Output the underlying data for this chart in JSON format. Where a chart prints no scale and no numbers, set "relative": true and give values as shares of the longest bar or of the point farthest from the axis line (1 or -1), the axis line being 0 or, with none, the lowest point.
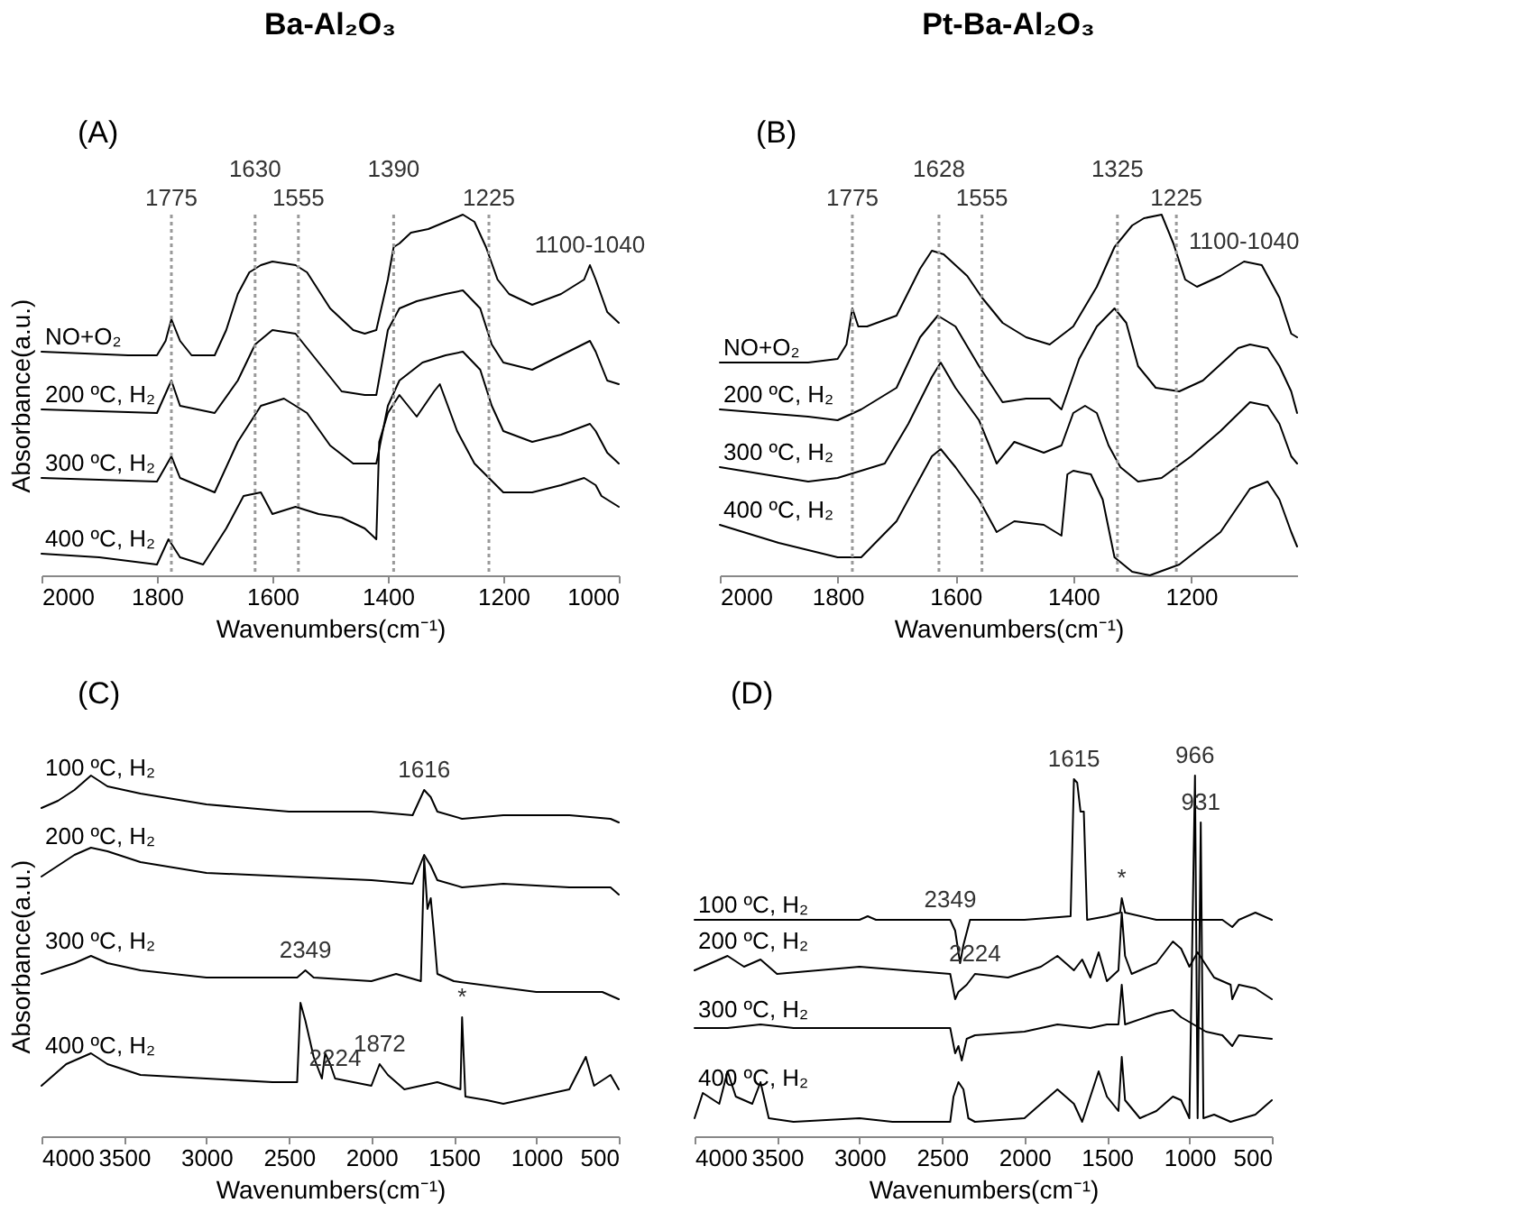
{
  "chart_data": [
    {
      "type": "line",
      "title": "Ba-Al₂O₃",
      "xlabel": "Wavenumbers(cm⁻¹)",
      "ylabel": "Absorbance(a.u.)",
      "relative": true,
      "grid": false,
      "legend": false,
      "xlim": [
        2000,
        1000
      ],
      "xticks": [
        2000,
        1800,
        1600,
        1400,
        1200,
        1000
      ],
      "x": [
        2000,
        1850,
        1800,
        1785,
        1775,
        1760,
        1740,
        1700,
        1680,
        1660,
        1640,
        1620,
        1600,
        1560,
        1540,
        1520,
        1500,
        1460,
        1440,
        1420,
        1400,
        1390,
        1380,
        1360,
        1330,
        1300,
        1270,
        1250,
        1230,
        1210,
        1190,
        1150,
        1100,
        1060,
        1050,
        1040,
        1020,
        1000
      ],
      "series": [
        {
          "name": "NO+O₂",
          "color": "#000000",
          "values": [
            0.62,
            0.61,
            0.61,
            0.65,
            0.71,
            0.65,
            0.61,
            0.61,
            0.68,
            0.78,
            0.84,
            0.86,
            0.87,
            0.86,
            0.84,
            0.79,
            0.74,
            0.68,
            0.67,
            0.68,
            0.82,
            0.91,
            0.92,
            0.95,
            0.96,
            0.98,
            1.0,
            0.98,
            0.91,
            0.82,
            0.78,
            0.75,
            0.78,
            0.82,
            0.86,
            0.82,
            0.73,
            0.7
          ]
        },
        {
          "name": "200 ºC, H₂",
          "color": "#000000",
          "x": [
            2000,
            1800,
            1775,
            1760,
            1700,
            1660,
            1630,
            1600,
            1560,
            1520,
            1480,
            1440,
            1420,
            1400,
            1380,
            1350,
            1300,
            1270,
            1240,
            1220,
            1200,
            1150,
            1100,
            1050,
            1040,
            1020,
            1000
          ],
          "values": [
            0.46,
            0.45,
            0.54,
            0.47,
            0.45,
            0.54,
            0.64,
            0.68,
            0.67,
            0.59,
            0.51,
            0.5,
            0.5,
            0.68,
            0.74,
            0.76,
            0.78,
            0.79,
            0.74,
            0.64,
            0.59,
            0.57,
            0.61,
            0.65,
            0.62,
            0.54,
            0.53
          ]
        },
        {
          "name": "300 ºC, H₂",
          "color": "#000000",
          "x": [
            2000,
            1800,
            1775,
            1760,
            1700,
            1660,
            1620,
            1580,
            1540,
            1500,
            1460,
            1420,
            1400,
            1380,
            1340,
            1300,
            1270,
            1240,
            1220,
            1200,
            1150,
            1100,
            1050,
            1040,
            1020,
            1000
          ],
          "values": [
            0.27,
            0.26,
            0.33,
            0.27,
            0.23,
            0.37,
            0.47,
            0.49,
            0.45,
            0.36,
            0.31,
            0.31,
            0.47,
            0.54,
            0.59,
            0.61,
            0.62,
            0.57,
            0.47,
            0.4,
            0.37,
            0.39,
            0.42,
            0.4,
            0.34,
            0.31
          ]
        },
        {
          "name": "400 ºC, H₂",
          "color": "#000000",
          "x": [
            2000,
            1900,
            1800,
            1780,
            1760,
            1720,
            1680,
            1650,
            1620,
            1600,
            1560,
            1520,
            1480,
            1440,
            1420,
            1415,
            1400,
            1380,
            1350,
            1320,
            1310,
            1280,
            1250,
            1200,
            1150,
            1100,
            1060,
            1040,
            1030,
            1000
          ],
          "values": [
            0.06,
            0.05,
            0.03,
            0.1,
            0.05,
            0.03,
            0.13,
            0.22,
            0.23,
            0.17,
            0.19,
            0.17,
            0.16,
            0.13,
            0.1,
            0.37,
            0.45,
            0.5,
            0.44,
            0.51,
            0.53,
            0.4,
            0.31,
            0.23,
            0.23,
            0.25,
            0.27,
            0.25,
            0.22,
            0.19
          ]
        }
      ],
      "ref_lines": [
        {
          "axis": "x",
          "value": 1775,
          "label": "1775",
          "color": "#999999",
          "line_style": "dotted"
        },
        {
          "axis": "x",
          "value": 1630,
          "label": "1630",
          "color": "#999999",
          "line_style": "dotted"
        },
        {
          "axis": "x",
          "value": 1555,
          "label": "1555",
          "color": "#999999",
          "line_style": "dotted"
        },
        {
          "axis": "x",
          "value": 1390,
          "label": "1390",
          "color": "#999999",
          "line_style": "dotted"
        },
        {
          "axis": "x",
          "value": 1225,
          "label": "1225",
          "color": "#999999",
          "line_style": "dotted"
        }
      ],
      "annotations": [
        "(A)",
        {
          "text": "1100-1040",
          "x": 1050,
          "y": 0.86
        }
      ]
    },
    {
      "type": "line",
      "title": "Pt-Ba-Al₂O₃",
      "xlabel": "Wavenumbers(cm⁻¹)",
      "relative": true,
      "grid": false,
      "legend": false,
      "xlim": [
        2000,
        1020
      ],
      "xticks": [
        2000,
        1800,
        1600,
        1400,
        1200
      ],
      "series": [
        {
          "name": "NO+O₂",
          "color": "#000000",
          "x": [
            2000,
            1850,
            1800,
            1785,
            1775,
            1765,
            1750,
            1700,
            1660,
            1640,
            1620,
            1580,
            1555,
            1520,
            1480,
            1440,
            1400,
            1360,
            1330,
            1300,
            1280,
            1250,
            1230,
            1210,
            1190,
            1150,
            1110,
            1080,
            1050,
            1030,
            1020
          ],
          "values": [
            0.59,
            0.59,
            0.6,
            0.64,
            0.74,
            0.69,
            0.69,
            0.72,
            0.85,
            0.9,
            0.89,
            0.83,
            0.77,
            0.7,
            0.66,
            0.64,
            0.69,
            0.8,
            0.91,
            0.97,
            0.99,
            1.0,
            0.92,
            0.82,
            0.8,
            0.83,
            0.87,
            0.86,
            0.77,
            0.67,
            0.66
          ]
        },
        {
          "name": "200 ºC, H₂",
          "color": "#000000",
          "x": [
            2000,
            1850,
            1800,
            1760,
            1700,
            1660,
            1630,
            1600,
            1560,
            1520,
            1480,
            1440,
            1420,
            1390,
            1360,
            1330,
            1310,
            1290,
            1260,
            1220,
            1180,
            1120,
            1100,
            1070,
            1050,
            1030,
            1020
          ],
          "values": [
            0.46,
            0.44,
            0.43,
            0.46,
            0.52,
            0.66,
            0.72,
            0.69,
            0.58,
            0.48,
            0.49,
            0.49,
            0.46,
            0.6,
            0.69,
            0.74,
            0.7,
            0.58,
            0.52,
            0.51,
            0.54,
            0.63,
            0.64,
            0.63,
            0.58,
            0.51,
            0.45
          ]
        },
        {
          "name": "300 ºC, H₂",
          "color": "#000000",
          "x": [
            2000,
            1850,
            1800,
            1720,
            1680,
            1640,
            1625,
            1600,
            1560,
            1530,
            1500,
            1450,
            1420,
            1400,
            1380,
            1360,
            1340,
            1320,
            1290,
            1250,
            1200,
            1150,
            1100,
            1070,
            1050,
            1030,
            1020
          ],
          "values": [
            0.3,
            0.26,
            0.27,
            0.31,
            0.42,
            0.55,
            0.59,
            0.52,
            0.43,
            0.31,
            0.37,
            0.34,
            0.36,
            0.45,
            0.47,
            0.45,
            0.36,
            0.3,
            0.26,
            0.27,
            0.33,
            0.4,
            0.48,
            0.47,
            0.42,
            0.33,
            0.31
          ]
        },
        {
          "name": "400 ºC, H₂",
          "color": "#000000",
          "x": [
            2000,
            1900,
            1800,
            1760,
            1700,
            1660,
            1640,
            1625,
            1600,
            1560,
            1530,
            1500,
            1450,
            1420,
            1410,
            1400,
            1370,
            1350,
            1330,
            1300,
            1270,
            1220,
            1150,
            1100,
            1070,
            1050,
            1030,
            1020
          ],
          "values": [
            0.14,
            0.09,
            0.05,
            0.05,
            0.15,
            0.27,
            0.33,
            0.35,
            0.3,
            0.21,
            0.12,
            0.15,
            0.14,
            0.11,
            0.28,
            0.29,
            0.28,
            0.21,
            0.05,
            0.01,
            0.0,
            0.03,
            0.12,
            0.24,
            0.26,
            0.21,
            0.12,
            0.08
          ]
        }
      ],
      "ref_lines": [
        {
          "axis": "x",
          "value": 1775,
          "label": "1775",
          "color": "#999999",
          "line_style": "dotted"
        },
        {
          "axis": "x",
          "value": 1628,
          "label": "1628",
          "color": "#999999",
          "line_style": "dotted"
        },
        {
          "axis": "x",
          "value": 1555,
          "label": "1555",
          "color": "#999999",
          "line_style": "dotted"
        },
        {
          "axis": "x",
          "value": 1325,
          "label": "1325",
          "color": "#999999",
          "line_style": "dotted"
        },
        {
          "axis": "x",
          "value": 1225,
          "label": "1225",
          "color": "#999999",
          "line_style": "dotted"
        }
      ],
      "annotations": [
        "(B)",
        {
          "text": "1100-1040",
          "x": 1110,
          "y": 0.87
        }
      ]
    },
    {
      "type": "line",
      "xlabel": "Wavenumbers(cm⁻¹)",
      "ylabel": "Absorbance(a.u.)",
      "relative": true,
      "grid": false,
      "legend": false,
      "xlim": [
        4000,
        500
      ],
      "xticks": [
        4000,
        3500,
        3000,
        2500,
        2000,
        1500,
        1000,
        500
      ],
      "series": [
        {
          "name": "100 ºC, H₂",
          "color": "#000000",
          "x": [
            4000,
            3900,
            3800,
            3700,
            3600,
            3400,
            3000,
            2500,
            2000,
            1750,
            1680,
            1640,
            1600,
            1450,
            1200,
            800,
            550,
            500
          ],
          "values": [
            0.91,
            0.93,
            0.96,
            1.0,
            0.97,
            0.95,
            0.92,
            0.9,
            0.9,
            0.89,
            0.96,
            0.94,
            0.9,
            0.88,
            0.89,
            0.89,
            0.88,
            0.87
          ]
        },
        {
          "name": "200 ºC, H₂",
          "color": "#000000",
          "x": [
            4000,
            3800,
            3700,
            3600,
            3400,
            3000,
            2500,
            2000,
            1750,
            1680,
            1640,
            1600,
            1450,
            1200,
            800,
            550,
            500
          ],
          "values": [
            0.72,
            0.78,
            0.8,
            0.79,
            0.76,
            0.73,
            0.72,
            0.71,
            0.7,
            0.78,
            0.75,
            0.71,
            0.69,
            0.7,
            0.69,
            0.69,
            0.67
          ]
        },
        {
          "name": "300 ºC, H₂",
          "color": "#000000",
          "x": [
            4000,
            3800,
            3700,
            3600,
            3400,
            3000,
            2450,
            2400,
            2350,
            2000,
            1850,
            1700,
            1680,
            1660,
            1640,
            1620,
            1600,
            1500,
            1000,
            600,
            500
          ],
          "values": [
            0.45,
            0.48,
            0.5,
            0.48,
            0.46,
            0.44,
            0.44,
            0.46,
            0.44,
            0.43,
            0.45,
            0.43,
            0.77,
            0.63,
            0.66,
            0.56,
            0.45,
            0.43,
            0.4,
            0.4,
            0.38
          ]
        },
        {
          "name": "400 ºC, H₂",
          "color": "#000000",
          "x": [
            4000,
            3850,
            3700,
            3600,
            3400,
            3000,
            2600,
            2450,
            2430,
            2400,
            2350,
            2300,
            2280,
            2250,
            2220,
            2000,
            1950,
            1900,
            1800,
            1600,
            1460,
            1450,
            1430,
            1300,
            1200,
            1000,
            800,
            700,
            650,
            550,
            500
          ],
          "values": [
            0.14,
            0.2,
            0.23,
            0.2,
            0.17,
            0.16,
            0.15,
            0.15,
            0.37,
            0.32,
            0.22,
            0.16,
            0.23,
            0.2,
            0.16,
            0.14,
            0.2,
            0.17,
            0.13,
            0.15,
            0.13,
            0.33,
            0.11,
            0.1,
            0.09,
            0.11,
            0.13,
            0.22,
            0.14,
            0.17,
            0.13
          ]
        }
      ],
      "annotations": [
        "(C)",
        {
          "text": "1616",
          "x": 1680,
          "y": 0.96
        },
        {
          "text": "2349",
          "x": 2400,
          "y": 0.46
        },
        {
          "text": "2224",
          "x": 2220,
          "y": 0.16
        },
        {
          "text": "1872",
          "x": 1950,
          "y": 0.2
        },
        {
          "text": "*",
          "x": 1450,
          "y": 0.33
        }
      ]
    },
    {
      "type": "line",
      "xlabel": "Wavenumbers(cm⁻¹)",
      "relative": true,
      "grid": false,
      "legend": false,
      "xlim": [
        4000,
        500
      ],
      "xticks": [
        4000,
        3500,
        3000,
        2500,
        2000,
        1500,
        1000,
        500
      ],
      "series": [
        {
          "name": "100 ºC, H₂",
          "color": "#000000",
          "x": [
            4000,
            3800,
            3500,
            3000,
            2950,
            2900,
            2450,
            2420,
            2390,
            2370,
            2330,
            2000,
            1720,
            1700,
            1680,
            1660,
            1640,
            1620,
            1500,
            1420,
            1410,
            1390,
            1200,
            1000,
            950,
            800,
            740,
            700,
            600,
            500
          ],
          "values": [
            0.6,
            0.6,
            0.6,
            0.6,
            0.61,
            0.6,
            0.6,
            0.57,
            0.48,
            0.53,
            0.6,
            0.6,
            0.61,
            0.99,
            0.98,
            0.9,
            0.9,
            0.6,
            0.61,
            0.62,
            0.66,
            0.62,
            0.6,
            0.6,
            0.6,
            0.6,
            0.58,
            0.6,
            0.62,
            0.6
          ]
        },
        {
          "name": "200 ºC, H₂",
          "color": "#000000",
          "x": [
            4000,
            3900,
            3800,
            3700,
            3600,
            3500,
            3000,
            2450,
            2420,
            2400,
            2350,
            2300,
            2100,
            1900,
            1800,
            1700,
            1650,
            1600,
            1550,
            1500,
            1430,
            1410,
            1390,
            1350,
            1200,
            1100,
            1050,
            1000,
            950,
            850,
            750,
            740,
            700,
            600,
            500
          ],
          "values": [
            0.46,
            0.48,
            0.5,
            0.47,
            0.49,
            0.45,
            0.47,
            0.45,
            0.38,
            0.4,
            0.42,
            0.45,
            0.44,
            0.47,
            0.5,
            0.46,
            0.49,
            0.44,
            0.51,
            0.43,
            0.46,
            0.62,
            0.5,
            0.45,
            0.48,
            0.54,
            0.52,
            0.47,
            0.51,
            0.44,
            0.42,
            0.38,
            0.42,
            0.41,
            0.38
          ]
        },
        {
          "name": "300 ºC, H₂",
          "color": "#000000",
          "x": [
            4000,
            3800,
            3600,
            3400,
            2450,
            2420,
            2400,
            2380,
            2350,
            2300,
            2000,
            1800,
            1600,
            1500,
            1430,
            1410,
            1390,
            1200,
            1100,
            1050,
            900,
            800,
            740,
            700,
            500
          ],
          "values": [
            0.3,
            0.3,
            0.31,
            0.3,
            0.3,
            0.23,
            0.25,
            0.21,
            0.27,
            0.28,
            0.29,
            0.31,
            0.3,
            0.31,
            0.31,
            0.42,
            0.31,
            0.34,
            0.35,
            0.33,
            0.29,
            0.28,
            0.25,
            0.28,
            0.27
          ]
        },
        {
          "name": "400 ºC, H₂",
          "color": "#000000",
          "x": [
            4000,
            3950,
            3850,
            3800,
            3750,
            3650,
            3600,
            3550,
            3400,
            3000,
            2800,
            2450,
            2430,
            2400,
            2370,
            2340,
            2300,
            2000,
            1800,
            1700,
            1650,
            1550,
            1500,
            1430,
            1410,
            1390,
            1300,
            1200,
            1100,
            1050,
            1000,
            966,
            950,
            931,
            915,
            850,
            750,
            600,
            500
          ],
          "values": [
            0.05,
            0.12,
            0.09,
            0.18,
            0.11,
            0.09,
            0.15,
            0.05,
            0.04,
            0.05,
            0.04,
            0.04,
            0.11,
            0.15,
            0.13,
            0.05,
            0.04,
            0.05,
            0.13,
            0.09,
            0.04,
            0.18,
            0.11,
            0.07,
            0.22,
            0.1,
            0.05,
            0.07,
            0.11,
            0.1,
            0.05,
            1.0,
            0.05,
            0.87,
            0.05,
            0.06,
            0.04,
            0.06,
            0.1
          ]
        }
      ],
      "annotations": [
        "(D)",
        {
          "text": "1615",
          "x": 1700,
          "y": 0.99
        },
        {
          "text": "966",
          "x": 966,
          "y": 1.0
        },
        {
          "text": "931",
          "x": 931,
          "y": 0.87
        },
        {
          "text": "2349",
          "x": 2450,
          "y": 0.6
        },
        {
          "text": "2224",
          "x": 2300,
          "y": 0.45
        },
        {
          "text": "*",
          "x": 1410,
          "y": 0.66
        }
      ]
    }
  ]
}
